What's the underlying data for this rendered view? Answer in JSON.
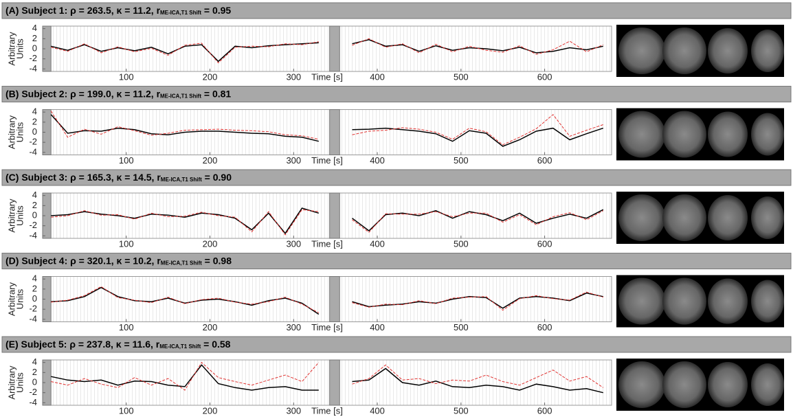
{
  "chart_data": [
    {
      "type": "line",
      "title": "(A) Subject 1: ρ = 263.5, κ = 11.2, r",
      "title_sub": "ME-ICA,T1 Shift",
      "title_end": " = 0.95",
      "xlabel": "Time [s]",
      "ylabel": [
        "Arbitrary",
        "Units"
      ],
      "xlim": [
        0,
        680
      ],
      "ylim": [
        -4.5,
        4.5
      ],
      "xticks": [
        100,
        200,
        300,
        400,
        500,
        600
      ],
      "yticks": [
        -4,
        -2,
        0,
        2,
        4
      ],
      "shaded": [
        [
          0,
          10
        ],
        [
          343,
          355
        ]
      ],
      "x": [
        10,
        30,
        50,
        70,
        90,
        110,
        130,
        150,
        170,
        190,
        210,
        230,
        250,
        270,
        290,
        310,
        330,
        350,
        370,
        390,
        410,
        430,
        450,
        470,
        490,
        510,
        530,
        550,
        570,
        590,
        610,
        630,
        650,
        670
      ],
      "series": [
        {
          "color": "#000000",
          "values": [
            0.5,
            -0.3,
            0.8,
            -0.5,
            0.2,
            -0.4,
            0.3,
            -1.0,
            0.5,
            0.8,
            -2.5,
            0.5,
            0.2,
            0.6,
            0.8,
            1.0,
            1.2,
            null,
            1.0,
            1.8,
            0.5,
            0.8,
            -0.5,
            0.6,
            -0.3,
            0.2,
            0,
            -0.4,
            0.3,
            -0.8,
            -0.5,
            0.2,
            -0.2,
            0.5
          ]
        },
        {
          "color": "#e0312f",
          "dashed": true,
          "values": [
            0.3,
            -0.5,
            1.0,
            -0.8,
            0.4,
            -0.6,
            0.1,
            -1.3,
            0.7,
            1.1,
            -2.8,
            0.3,
            0.5,
            0.4,
            1.0,
            0.8,
            1.4,
            null,
            0.7,
            2.0,
            0.3,
            1.0,
            -0.8,
            0.9,
            -0.6,
            0.5,
            -0.3,
            -0.7,
            0.6,
            -1.1,
            -0.2,
            1.5,
            -0.6,
            0.8
          ]
        }
      ]
    },
    {
      "type": "line",
      "title": "(B) Subject 2: ρ = 199.0, κ = 11.2, r",
      "title_sub": "ME-ICA,T1 Shift",
      "title_end": " = 0.81",
      "xlabel": "Time [s]",
      "ylabel": [
        "Arbitrary",
        "Units"
      ],
      "xlim": [
        0,
        680
      ],
      "ylim": [
        -4.5,
        4.5
      ],
      "xticks": [
        100,
        200,
        300,
        400,
        500,
        600
      ],
      "yticks": [
        -4,
        -2,
        0,
        2,
        4
      ],
      "shaded": [
        [
          0,
          10
        ],
        [
          343,
          355
        ]
      ],
      "x": [
        10,
        30,
        50,
        70,
        90,
        110,
        130,
        150,
        170,
        190,
        210,
        230,
        250,
        270,
        290,
        310,
        330,
        350,
        370,
        390,
        410,
        430,
        450,
        470,
        490,
        510,
        530,
        550,
        570,
        590,
        610,
        630,
        650,
        670
      ],
      "series": [
        {
          "color": "#000000",
          "values": [
            3.5,
            -0.2,
            0.3,
            0.2,
            0.8,
            0.5,
            -0.3,
            -0.5,
            0,
            0.2,
            0.2,
            0,
            -0.2,
            -0.3,
            -0.8,
            -1.0,
            -1.8,
            null,
            0.5,
            0.6,
            0.8,
            0.5,
            0.2,
            -0.3,
            -1.8,
            0.3,
            -0.2,
            -2.8,
            -1.5,
            0.2,
            0.8,
            -1.5,
            -0.3,
            0.8
          ]
        },
        {
          "color": "#e0312f",
          "dashed": true,
          "values": [
            4.2,
            -1.0,
            0.6,
            -0.4,
            1.1,
            0.3,
            -0.6,
            -0.2,
            0.4,
            0.5,
            0.6,
            0.4,
            0.3,
            0.1,
            -0.5,
            -0.7,
            -1.4,
            null,
            -0.5,
            0.2,
            0.4,
            0.9,
            0.6,
            0.0,
            -1.4,
            0.8,
            0.1,
            -2.5,
            -1.0,
            0.7,
            3.5,
            -0.8,
            0.4,
            1.5
          ]
        }
      ]
    },
    {
      "type": "line",
      "title": "(C) Subject 3: ρ = 165.3, κ = 14.5, r",
      "title_sub": "ME-ICA,T1 Shift",
      "title_end": " = 0.90",
      "xlabel": "Time [s]",
      "ylabel": [
        "Arbitrary",
        "Units"
      ],
      "xlim": [
        0,
        680
      ],
      "ylim": [
        -4.5,
        4.5
      ],
      "xticks": [
        100,
        200,
        300,
        400,
        500,
        600
      ],
      "yticks": [
        -4,
        -2,
        0,
        2,
        4
      ],
      "shaded": [
        [
          0,
          10
        ],
        [
          343,
          355
        ]
      ],
      "x": [
        10,
        30,
        50,
        70,
        90,
        110,
        130,
        150,
        170,
        190,
        210,
        230,
        250,
        270,
        290,
        310,
        330,
        350,
        370,
        390,
        410,
        430,
        450,
        470,
        490,
        510,
        530,
        550,
        570,
        590,
        610,
        630,
        650,
        670
      ],
      "series": [
        {
          "color": "#000000",
          "values": [
            0,
            0.2,
            0.8,
            0.3,
            0,
            -0.5,
            0.3,
            0.1,
            -0.3,
            0.5,
            0.2,
            -0.5,
            -2.8,
            0.5,
            -3.5,
            1.5,
            0.5,
            null,
            -0.5,
            -3,
            0.2,
            0.5,
            0,
            1.0,
            -0.5,
            0.8,
            0.2,
            -1.0,
            0.5,
            -1.5,
            -0.5,
            0.3,
            -0.5,
            1.2
          ]
        },
        {
          "color": "#e0312f",
          "dashed": true,
          "values": [
            -0.3,
            0.0,
            1.0,
            0.1,
            0.2,
            -0.7,
            0.5,
            -0.2,
            -0.1,
            0.7,
            0.0,
            -0.3,
            -3.2,
            0.8,
            -3.8,
            1.2,
            0.8,
            null,
            -0.8,
            -3.3,
            0.4,
            0.3,
            0.3,
            0.8,
            -0.2,
            0.5,
            0.5,
            -1.3,
            0.2,
            -1.8,
            -0.2,
            0.6,
            -0.8,
            1.0
          ]
        }
      ]
    },
    {
      "type": "line",
      "title": "(D) Subject 4: ρ = 320.1, κ = 10.2, r",
      "title_sub": "ME-ICA,T1 Shift",
      "title_end": " = 0.98",
      "xlabel": "Time [s]",
      "ylabel": [
        "Arbitrary",
        "Units"
      ],
      "xlim": [
        0,
        680
      ],
      "ylim": [
        -4.5,
        4.5
      ],
      "xticks": [
        100,
        200,
        300,
        400,
        500,
        600
      ],
      "yticks": [
        -4,
        -2,
        0,
        2,
        4
      ],
      "shaded": [
        [
          0,
          10
        ],
        [
          343,
          355
        ]
      ],
      "x": [
        10,
        30,
        50,
        70,
        90,
        110,
        130,
        150,
        170,
        190,
        210,
        230,
        250,
        270,
        290,
        310,
        330,
        350,
        370,
        390,
        410,
        430,
        450,
        470,
        490,
        510,
        530,
        550,
        570,
        590,
        610,
        630,
        650,
        670
      ],
      "series": [
        {
          "color": "#000000",
          "values": [
            -0.5,
            -0.3,
            0.5,
            2.3,
            0.5,
            -0.3,
            -0.5,
            0.2,
            -0.8,
            -0.2,
            0,
            -0.5,
            -1.2,
            -0.3,
            0.2,
            -0.8,
            -3,
            null,
            -0.5,
            -1.5,
            -1.2,
            -1.0,
            -0.5,
            -0.8,
            0,
            0.5,
            0.3,
            -1.8,
            0.2,
            0.5,
            0.2,
            -0.3,
            1.2,
            0.5
          ]
        },
        {
          "color": "#e0312f",
          "dashed": true,
          "values": [
            -0.6,
            -0.2,
            0.7,
            2.5,
            0.3,
            -0.2,
            -0.7,
            0.4,
            -0.9,
            -0.1,
            0.2,
            -0.6,
            -1.0,
            -0.5,
            0.4,
            -1.0,
            -2.7,
            null,
            -0.7,
            -1.6,
            -1.0,
            -1.1,
            -0.3,
            -0.9,
            0.2,
            0.4,
            0.5,
            -2.2,
            0.1,
            0.7,
            0.1,
            -0.2,
            1.4,
            0.4
          ]
        }
      ]
    },
    {
      "type": "line",
      "title": "(E) Subject 5: ρ = 237.8, κ = 11.6, r",
      "title_sub": "ME-ICA,T1 Shift",
      "title_end": " = 0.58",
      "xlabel": "Time [s]",
      "ylabel": [
        "Arbitrary",
        "Units"
      ],
      "xlim": [
        0,
        680
      ],
      "ylim": [
        -4.5,
        4.5
      ],
      "xticks": [
        100,
        200,
        300,
        400,
        500,
        600
      ],
      "yticks": [
        -4,
        -2,
        0,
        2,
        4
      ],
      "shaded": [
        [
          0,
          10
        ],
        [
          343,
          355
        ]
      ],
      "x": [
        10,
        30,
        50,
        70,
        90,
        110,
        130,
        150,
        170,
        190,
        210,
        230,
        250,
        270,
        290,
        310,
        330,
        350,
        370,
        390,
        410,
        430,
        450,
        470,
        490,
        510,
        530,
        550,
        570,
        590,
        610,
        630,
        650,
        670
      ],
      "series": [
        {
          "color": "#000000",
          "values": [
            1.2,
            0.5,
            0.2,
            0.5,
            -0.5,
            0.3,
            0.2,
            -0.5,
            -0.8,
            3.5,
            -0.2,
            -1.0,
            -1.5,
            -1.0,
            -0.8,
            -1.5,
            -1.5,
            null,
            0.2,
            0.5,
            2.8,
            0,
            -0.5,
            0.3,
            -0.8,
            -1.0,
            -0.5,
            -0.8,
            -1.5,
            -0.3,
            -0.8,
            -1.5,
            -1.2,
            -2.0
          ]
        },
        {
          "color": "#e0312f",
          "dashed": true,
          "values": [
            0.2,
            -0.5,
            0.8,
            -0.3,
            -1.0,
            1.0,
            -0.5,
            0.8,
            -1.5,
            4.0,
            1.0,
            0.2,
            -0.5,
            0.5,
            1.5,
            0.2,
            4.0,
            null,
            -0.3,
            0.8,
            3.5,
            0.5,
            0.8,
            -0.2,
            0.5,
            0.3,
            1.5,
            0.2,
            -0.5,
            1.0,
            2.5,
            0.3,
            1.2,
            -1.0
          ]
        }
      ]
    }
  ]
}
